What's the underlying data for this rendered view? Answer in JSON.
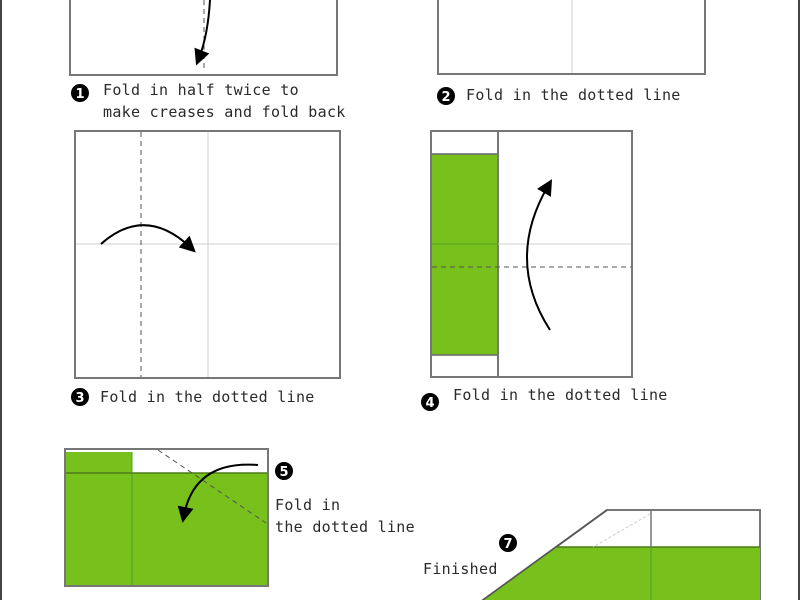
{
  "colors": {
    "paper_green": "#78c01c",
    "outline": "#777777",
    "text": "#2a2a2a"
  },
  "steps": [
    {
      "number": "1",
      "lines": [
        "Fold in half twice to",
        "make creases and fold back"
      ]
    },
    {
      "number": "2",
      "lines": [
        "Fold in the dotted line"
      ]
    },
    {
      "number": "3",
      "lines": [
        "Fold in the dotted line"
      ]
    },
    {
      "number": "4",
      "lines": [
        "Fold in the dotted line"
      ]
    },
    {
      "number": "5",
      "lines": [
        "Fold in",
        "the dotted line"
      ]
    },
    {
      "number": "7",
      "lines": [
        "Finished"
      ]
    }
  ]
}
